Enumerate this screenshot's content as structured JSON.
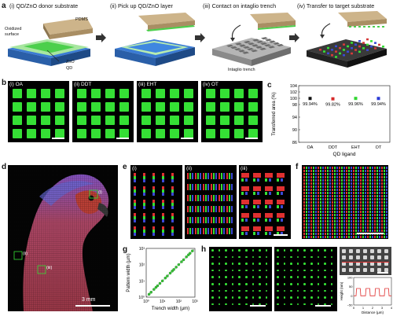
{
  "panel_a": {
    "label": "a",
    "steps": [
      {
        "title": "(i) QD/ZnO donor substrate"
      },
      {
        "title": "(ii) Pick up QD/ZnO layer"
      },
      {
        "title": "(iii) Contact on intaglio trench"
      },
      {
        "title": "(iv) Transfer to target substrate"
      }
    ],
    "annotations": {
      "pdms": "PDMS",
      "oxidized": "Oxidized",
      "surface": "surface",
      "zno": "ZnO",
      "qd": "QD",
      "trench": "Intaglio trench"
    }
  },
  "panel_b": {
    "label": "b",
    "tiles": [
      {
        "label": "(i) OA"
      },
      {
        "label": "(ii) DDT"
      },
      {
        "label": "(iii) EHT"
      },
      {
        "label": "(iv) OT"
      }
    ]
  },
  "panel_c": {
    "label": "c",
    "chart_data": {
      "type": "scatter",
      "ylabel": "Transferred area (%)",
      "xlabel": "QD ligand",
      "categories": [
        "OA",
        "DDT",
        "EHT",
        "OT"
      ],
      "values": [
        99.94,
        99.82,
        99.96,
        99.94
      ],
      "value_labels": [
        "99.94%",
        "99.82%",
        "99.96%",
        "99.94%"
      ],
      "colors": [
        "#111111",
        "#d62a2a",
        "#33d633",
        "#2a3ad6"
      ],
      "ylim": [
        86,
        104
      ],
      "yticks": [
        86,
        90,
        94,
        98,
        100,
        102,
        104
      ],
      "ytick_labels": [
        "86",
        "90",
        "94",
        "98",
        "100",
        "102",
        "104"
      ]
    }
  },
  "panel_d": {
    "label": "d",
    "roi": [
      "(i)",
      "(ii)",
      "(iii)"
    ],
    "scalebar": "3 mm"
  },
  "panel_e": {
    "label": "e",
    "sub": [
      "(i)",
      "(ii)",
      "(iii)"
    ]
  },
  "panel_f": {
    "label": "f"
  },
  "panel_g": {
    "label": "g",
    "chart_data": {
      "type": "scatter",
      "xlabel": "Trench width (µm)",
      "ylabel": "Pattern width (µm)",
      "xscale": "log",
      "yscale": "log",
      "xlim": [
        1,
        1000
      ],
      "ylim": [
        1,
        1000
      ],
      "xtick_labels": [
        "10⁰",
        "10¹",
        "10²",
        "10³"
      ],
      "ytick_labels": [
        "10⁰",
        "10¹",
        "10²",
        "10³"
      ],
      "x": [
        1.5,
        2,
        3,
        4,
        5,
        7,
        10,
        15,
        20,
        30,
        40,
        50,
        70,
        100,
        150,
        200,
        300,
        400,
        500,
        700
      ],
      "y": [
        1.5,
        2,
        3,
        4,
        5,
        7,
        10,
        15,
        20,
        30,
        40,
        50,
        70,
        100,
        150,
        200,
        300,
        400,
        500,
        700
      ]
    }
  },
  "panel_h": {
    "label": "h",
    "chart_data": {
      "type": "line",
      "xlabel": "Distance (µm)",
      "ylabel": "Height (nm)",
      "xlim": [
        0,
        4
      ],
      "ylim": [
        -50,
        100
      ],
      "xticks": [
        0,
        1,
        2,
        3,
        4
      ],
      "yticks": [
        -50,
        0,
        50,
        100
      ],
      "xtick_labels": [
        "0",
        "1",
        "2",
        "3",
        "4"
      ],
      "ytick_labels": [
        "−50",
        "0",
        "50",
        "100"
      ],
      "x": [
        0,
        0.25,
        0.3,
        0.7,
        0.75,
        1.25,
        1.3,
        1.7,
        1.75,
        2.25,
        2.3,
        2.7,
        2.75,
        3.25,
        3.3,
        3.7,
        3.75,
        4
      ],
      "y": [
        0,
        0,
        40,
        40,
        0,
        0,
        40,
        40,
        0,
        0,
        40,
        40,
        0,
        0,
        40,
        40,
        0,
        0
      ]
    }
  }
}
